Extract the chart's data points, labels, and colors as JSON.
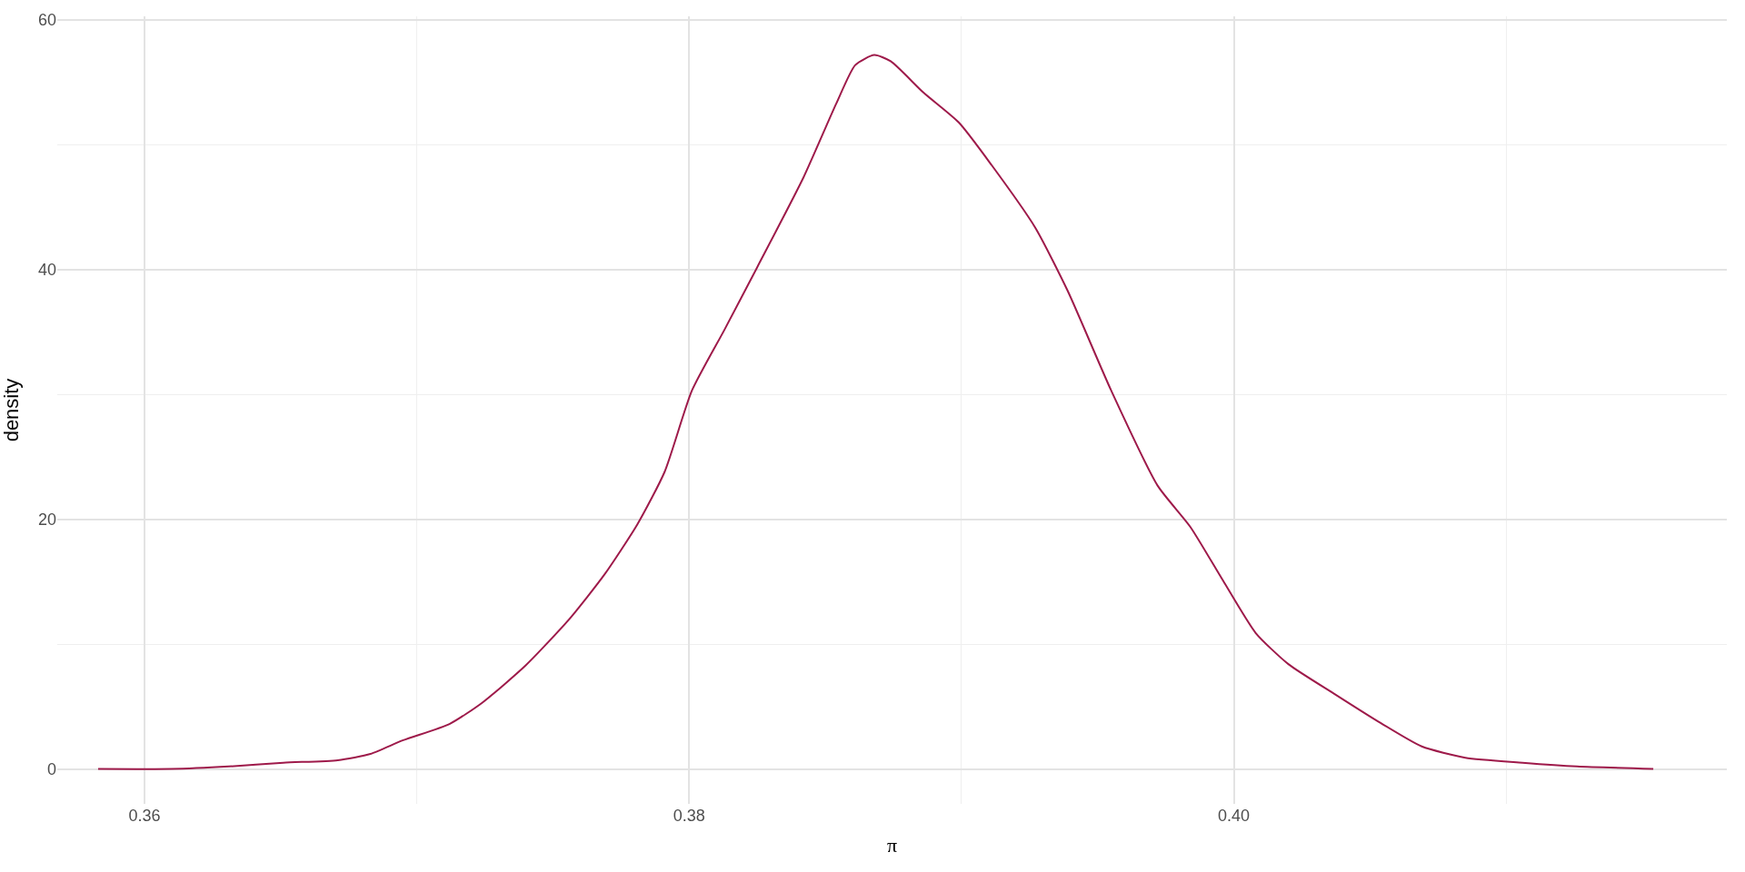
{
  "chart_data": {
    "type": "line",
    "xlabel": "π",
    "ylabel": "density",
    "x": [
      0.3583,
      0.361,
      0.3631,
      0.3651,
      0.3671,
      0.3683,
      0.3695,
      0.3712,
      0.3724,
      0.374,
      0.3756,
      0.3769,
      0.3781,
      0.3791,
      0.3801,
      0.3813,
      0.3825,
      0.3842,
      0.3854,
      0.3861,
      0.3868,
      0.3874,
      0.3886,
      0.3899,
      0.3911,
      0.3927,
      0.3939,
      0.3955,
      0.3972,
      0.3984,
      0.3996,
      0.4008,
      0.402,
      0.4037,
      0.4053,
      0.4069,
      0.4085,
      0.4106,
      0.4126,
      0.4154
    ],
    "series": [
      {
        "color": "#9e1a4a",
        "values": [
          0.0,
          0.0,
          0.2,
          0.5,
          0.7,
          1.2,
          2.3,
          3.6,
          5.3,
          8.3,
          12.0,
          15.6,
          19.6,
          23.8,
          30.3,
          35.2,
          40.2,
          47.4,
          53.3,
          56.4,
          57.2,
          56.7,
          54.2,
          51.8,
          48.4,
          43.4,
          38.3,
          30.3,
          22.7,
          19.4,
          15.1,
          10.9,
          8.4,
          6.0,
          3.8,
          1.8,
          0.9,
          0.5,
          0.2,
          0.0
        ]
      }
    ],
    "xlim": [
      0.3568,
      0.4181
    ],
    "ylim": [
      -2.8,
      60.3
    ],
    "xticks": [
      0.36,
      {
        "value": 0.37,
        "label": null
      },
      0.38,
      {
        "value": 0.39,
        "label": null
      },
      {
        "value": 0.4,
        "label": "0.40"
      },
      {
        "value": 0.41,
        "label": null
      }
    ],
    "yticks": [
      0,
      {
        "value": 10,
        "label": null
      },
      20,
      {
        "value": 30,
        "label": null
      },
      40,
      {
        "value": 50,
        "label": null
      },
      60
    ],
    "grid": true,
    "marker": "none",
    "line_style": "solid"
  }
}
